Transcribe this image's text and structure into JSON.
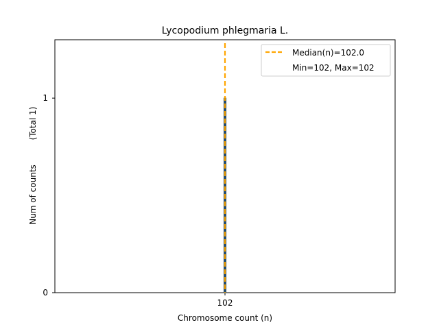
{
  "chart_data": {
    "type": "bar",
    "title": "Lycopodium phlegmaria L.",
    "xlabel": "Chromosome count (n)",
    "ylabel": "Num of counts",
    "ylabel_total": "(Total 1)",
    "categories": [
      "102"
    ],
    "values": [
      1
    ],
    "x_ticks": [
      "102"
    ],
    "y_ticks": [
      0,
      1
    ],
    "ylim": [
      0,
      1.3
    ],
    "median": 102.0,
    "min": 102,
    "max": 102,
    "legend": {
      "position": "top-right",
      "entries": [
        "Median(n)=102.0",
        "Min=102, Max=102"
      ]
    },
    "colors": {
      "bar_edge": "#2e4a5a",
      "median_line": "#ffa500",
      "axes": "#000000"
    }
  }
}
